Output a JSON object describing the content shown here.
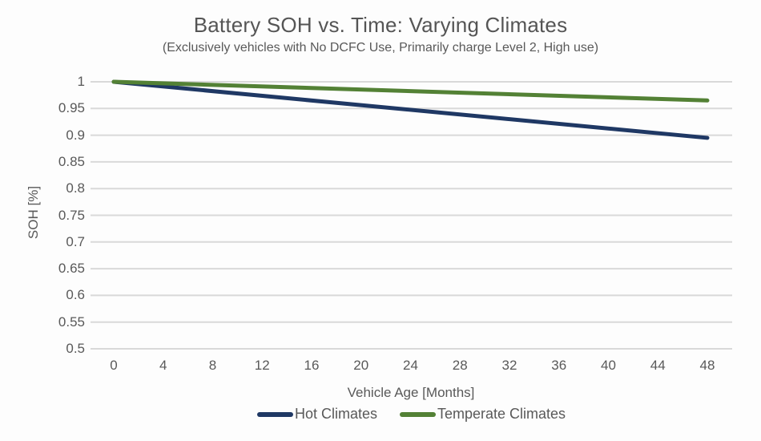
{
  "chart_data": {
    "type": "line",
    "title": "Battery SOH vs. Time: Varying Climates",
    "subtitle": "(Exclusively vehicles with No DCFC Use, Primarily charge Level 2, High use)",
    "xlabel": "Vehicle Age [Months]",
    "ylabel": "SOH [%]",
    "xlim": [
      0,
      48
    ],
    "ylim": [
      0.5,
      1.0
    ],
    "x_ticks": [
      0,
      4,
      8,
      12,
      16,
      20,
      24,
      28,
      32,
      36,
      40,
      44,
      48
    ],
    "y_ticks": [
      1,
      0.95,
      0.9,
      0.85,
      0.8,
      0.75,
      0.7,
      0.65,
      0.6,
      0.55,
      0.5
    ],
    "grid": "horizontal",
    "grid_color": "#d9d9d9",
    "text_color": "#595959",
    "legend_position": "bottom",
    "series": [
      {
        "name": "Hot Climates",
        "color": "#1f3864",
        "x": [
          0,
          48
        ],
        "y": [
          1.0,
          0.895
        ]
      },
      {
        "name": "Temperate Climates",
        "color": "#538135",
        "x": [
          0,
          48
        ],
        "y": [
          1.0,
          0.965
        ]
      }
    ]
  }
}
